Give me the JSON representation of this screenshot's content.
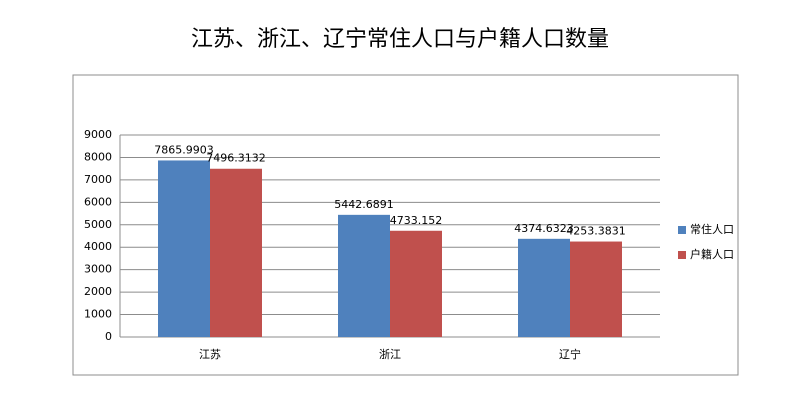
{
  "chart_data": {
    "type": "bar",
    "title": "江苏、浙江、辽宁常住人口与户籍人口数量",
    "categories": [
      "江苏",
      "浙江",
      "辽宁"
    ],
    "series": [
      {
        "name": "常住人口",
        "color": "#4f81bd",
        "values": [
          7865.9903,
          5442.6891,
          4374.6323
        ]
      },
      {
        "name": "户籍人口",
        "color": "#c0504d",
        "values": [
          7496.3132,
          4733.152,
          4253.3831
        ]
      }
    ],
    "ylim": [
      0,
      9000
    ],
    "yticks": [
      0,
      1000,
      2000,
      3000,
      4000,
      5000,
      6000,
      7000,
      8000,
      9000
    ],
    "grid": true,
    "legend": "right"
  }
}
